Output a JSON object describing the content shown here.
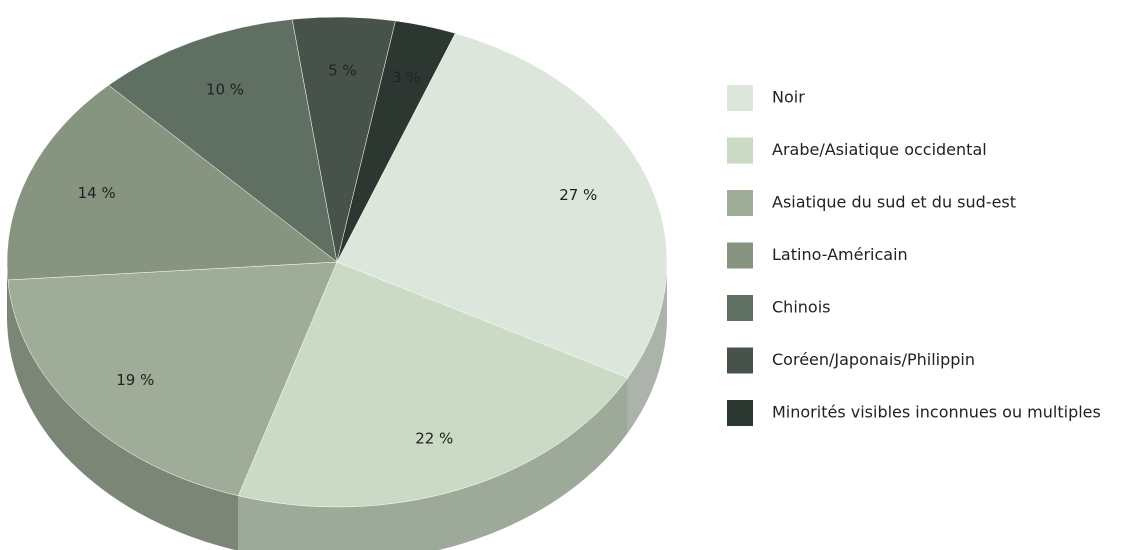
{
  "chart_data": {
    "type": "pie",
    "categories": [
      "Noir",
      "Arabe/Asiatique occidental",
      "Asiatique du sud et du sud-est",
      "Latino-Américain",
      "Chinois",
      "Coréen/Japonais/Philippin",
      "Minorités visibles inconnues ou multiples"
    ],
    "values": [
      27,
      22,
      19,
      14,
      10,
      5,
      3
    ],
    "value_labels": [
      "27 %",
      "22 %",
      "19 %",
      "14 %",
      "10 %",
      "5 %",
      "3 %"
    ],
    "colors": [
      "#dde6da",
      "#cbdac4",
      "#9eac98",
      "#87947f",
      "#5f6f62",
      "#46524a",
      "#2b3730"
    ]
  }
}
